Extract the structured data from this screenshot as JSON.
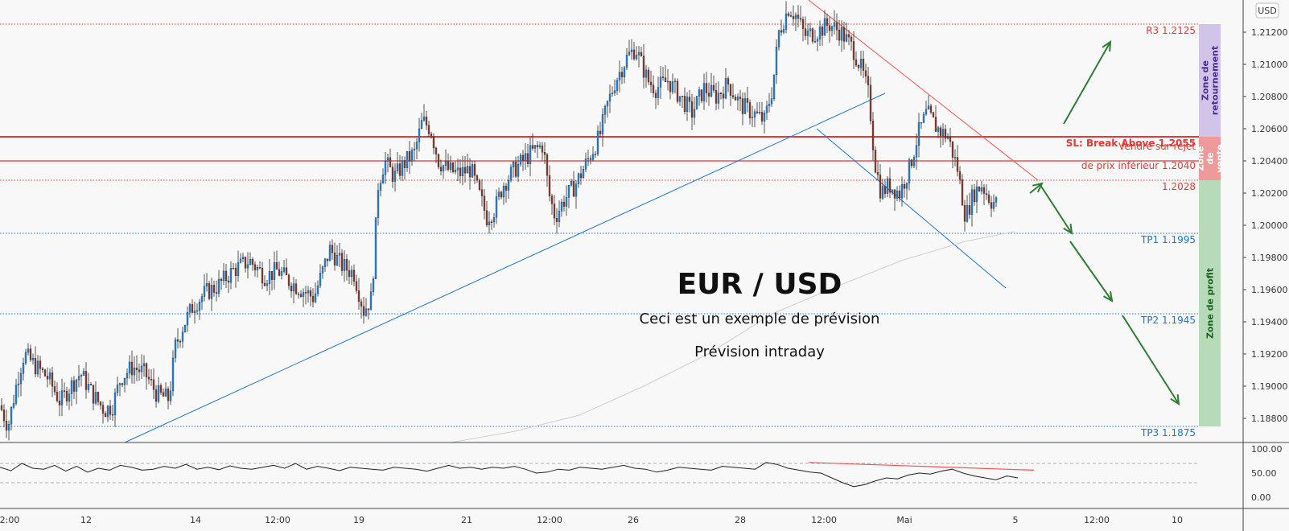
{
  "chart_data": {
    "type": "candlestick",
    "symbol_title": "EUR / USD",
    "subtitles": [
      "Ceci est un exemple de prévision",
      "Prévision intraday"
    ],
    "currency_badge": "USD",
    "ylim": [
      1.1865,
      1.214
    ],
    "y_ticks": [
      "1.21200",
      "1.21000",
      "1.20800",
      "1.20600",
      "1.20400",
      "1.20200",
      "1.20000",
      "1.19800",
      "1.19600",
      "1.19400",
      "1.19200",
      "1.19000",
      "1.18800"
    ],
    "x_ticks": [
      "2:00",
      "12",
      "14",
      "12:00",
      "19",
      "21",
      "12:00",
      "26",
      "28",
      "12:00",
      "Mai",
      "5",
      "12:00",
      "10"
    ],
    "levels": [
      {
        "label": "R3 1.2125",
        "value": 1.2125,
        "color": "#e53935",
        "style": "dotted"
      },
      {
        "label": "SL: Break Above 1.2055",
        "value": 1.2055,
        "color": "#e53935",
        "style": "solid",
        "bold": true
      },
      {
        "label": "Vendre sur rejet",
        "label2": "de prix inférieur 1.2040",
        "value": 1.204,
        "color": "#e53935",
        "style": "solid"
      },
      {
        "label": "1.2028",
        "value": 1.2028,
        "color": "#e53935",
        "style": "dotted"
      },
      {
        "label": "TP1 1.1995",
        "value": 1.1995,
        "color": "#1976d2",
        "style": "dotted"
      },
      {
        "label": "TP2 1.1945",
        "value": 1.1945,
        "color": "#1976d2",
        "style": "dotted"
      },
      {
        "label": "TP3 1.1875",
        "value": 1.1875,
        "color": "#1976d2",
        "style": "dotted"
      }
    ],
    "zones": [
      {
        "name": "Zone de retournement",
        "lines": [
          "Zone de",
          "retournement"
        ],
        "from": 1.2055,
        "to": 1.2125,
        "color": "#d1c4e9",
        "text_color": "#4a2c91"
      },
      {
        "name": "Zone de vente",
        "lines": [
          "Zone",
          "de",
          "vente"
        ],
        "from": 1.2028,
        "to": 1.2055,
        "color": "#ef9a9a",
        "text_color": "#ffffff"
      },
      {
        "name": "Zone de profit",
        "lines": [
          "Zone de profit"
        ],
        "from": 1.1875,
        "to": 1.2028,
        "color": "#b7dbb9",
        "text_color": "#1b5e20"
      }
    ],
    "price_path": [
      [
        0,
        1.1888
      ],
      [
        10,
        1.1875
      ],
      [
        22,
        1.1905
      ],
      [
        30,
        1.192
      ],
      [
        45,
        1.1912
      ],
      [
        60,
        1.1905
      ],
      [
        75,
        1.189
      ],
      [
        85,
        1.1898
      ],
      [
        100,
        1.1908
      ],
      [
        115,
        1.1895
      ],
      [
        130,
        1.1885
      ],
      [
        140,
        1.1888
      ],
      [
        150,
        1.1905
      ],
      [
        165,
        1.1912
      ],
      [
        180,
        1.1908
      ],
      [
        195,
        1.1895
      ],
      [
        210,
        1.1892
      ],
      [
        218,
        1.1925
      ],
      [
        228,
        1.1938
      ],
      [
        240,
        1.195
      ],
      [
        255,
        1.1958
      ],
      [
        270,
        1.1962
      ],
      [
        290,
        1.1972
      ],
      [
        310,
        1.1978
      ],
      [
        330,
        1.1968
      ],
      [
        345,
        1.1972
      ],
      [
        360,
        1.1965
      ],
      [
        375,
        1.196
      ],
      [
        390,
        1.1955
      ],
      [
        400,
        1.197
      ],
      [
        410,
        1.1985
      ],
      [
        425,
        1.1975
      ],
      [
        440,
        1.197
      ],
      [
        452,
        1.1947
      ],
      [
        462,
        1.1955
      ],
      [
        470,
        1.2025
      ],
      [
        478,
        1.204
      ],
      [
        490,
        1.203
      ],
      [
        505,
        1.204
      ],
      [
        515,
        1.2045
      ],
      [
        525,
        1.2065
      ],
      [
        535,
        1.206
      ],
      [
        545,
        1.204
      ],
      [
        555,
        1.2035
      ],
      [
        570,
        1.2032
      ],
      [
        585,
        1.2035
      ],
      [
        595,
        1.202
      ],
      [
        605,
        1.2005
      ],
      [
        615,
        1.201
      ],
      [
        625,
        1.2025
      ],
      [
        640,
        1.2035
      ],
      [
        660,
        1.2045
      ],
      [
        675,
        1.205
      ],
      [
        682,
        1.202
      ],
      [
        690,
        1.2005
      ],
      [
        700,
        1.2015
      ],
      [
        715,
        1.2025
      ],
      [
        730,
        1.204
      ],
      [
        745,
        1.2055
      ],
      [
        755,
        1.2075
      ],
      [
        765,
        1.209
      ],
      [
        780,
        1.2105
      ],
      [
        790,
        1.211
      ],
      [
        805,
        1.209
      ],
      [
        815,
        1.2085
      ],
      [
        830,
        1.209
      ],
      [
        845,
        1.208
      ],
      [
        860,
        1.207
      ],
      [
        875,
        1.2085
      ],
      [
        890,
        1.208
      ],
      [
        905,
        1.2088
      ],
      [
        920,
        1.2075
      ],
      [
        935,
        1.207
      ],
      [
        950,
        1.2065
      ],
      [
        960,
        1.2085
      ],
      [
        968,
        1.212
      ],
      [
        980,
        1.2135
      ],
      [
        990,
        1.213
      ],
      [
        1000,
        1.2118
      ],
      [
        1015,
        1.212
      ],
      [
        1030,
        1.2125
      ],
      [
        1045,
        1.212
      ],
      [
        1060,
        1.211
      ],
      [
        1072,
        1.2095
      ],
      [
        1080,
        1.208
      ],
      [
        1087,
        1.204
      ],
      [
        1095,
        1.202
      ],
      [
        1105,
        1.2025
      ],
      [
        1118,
        1.202
      ],
      [
        1130,
        1.2035
      ],
      [
        1142,
        1.2058
      ],
      [
        1152,
        1.207
      ],
      [
        1165,
        1.206
      ],
      [
        1178,
        1.2055
      ],
      [
        1190,
        1.2035
      ],
      [
        1200,
        1.2005
      ],
      [
        1210,
        1.202
      ],
      [
        1220,
        1.2025
      ],
      [
        1232,
        1.2015
      ],
      [
        1240,
        1.2013
      ]
    ],
    "rsi": {
      "y_ticks": [
        "100.00",
        "50.00",
        "0.00"
      ],
      "ylim": [
        0,
        100
      ],
      "bands": [
        70,
        30
      ],
      "values": [
        62,
        55,
        70,
        60,
        58,
        66,
        54,
        64,
        52,
        60,
        56,
        66,
        62,
        56,
        58,
        64,
        60,
        68,
        58,
        62,
        57,
        65,
        60,
        58,
        62,
        66,
        60,
        70,
        58,
        64,
        60,
        55,
        62,
        60,
        58,
        56,
        62,
        60,
        58,
        54,
        60,
        66,
        60,
        62,
        58,
        62,
        60,
        64,
        58,
        50,
        52,
        58,
        56,
        62,
        60,
        58,
        62,
        66,
        60,
        58,
        52,
        56,
        62,
        60,
        58,
        56,
        64,
        62,
        60,
        58,
        72,
        68,
        60,
        56,
        52,
        50,
        40,
        30,
        22,
        26,
        34,
        40,
        38,
        46,
        50,
        48,
        54,
        58,
        50,
        44,
        40,
        36,
        44,
        40
      ]
    }
  }
}
